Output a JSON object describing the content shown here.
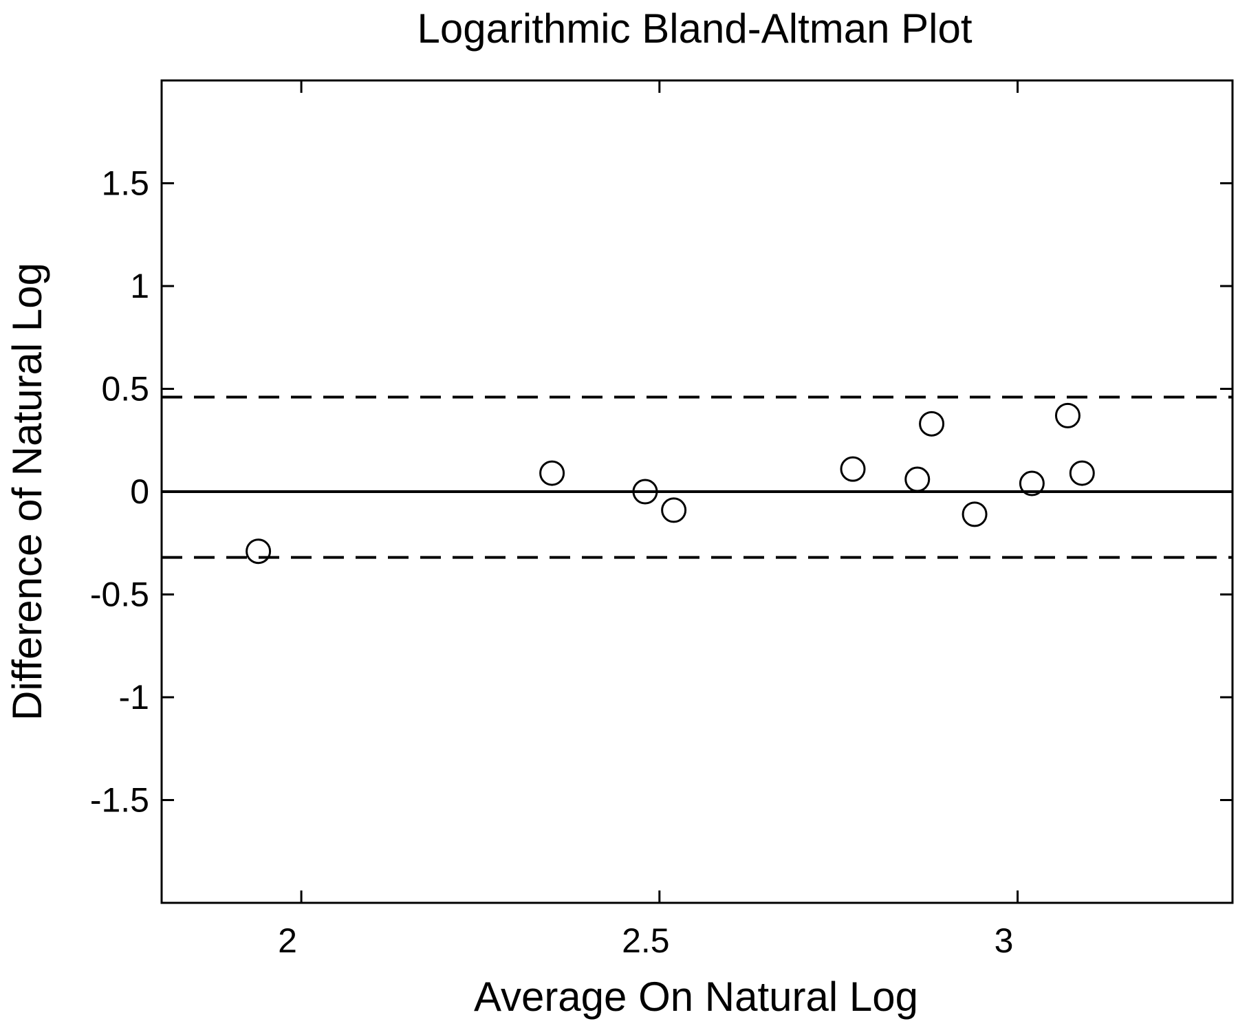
{
  "chart_data": {
    "type": "scatter",
    "title": "Logarithmic Bland-Altman Plot",
    "xlabel": "Average On Natural Log",
    "ylabel": "Difference of Natural Log",
    "xlim": [
      1.805,
      3.3
    ],
    "ylim": [
      -2.0,
      2.0
    ],
    "xticks": [
      {
        "value": 2,
        "label": "2"
      },
      {
        "value": 2.5,
        "label": "2.5"
      },
      {
        "value": 3,
        "label": "3"
      }
    ],
    "yticks": [
      {
        "value": 1.5,
        "label": "1.5"
      },
      {
        "value": 1,
        "label": "1"
      },
      {
        "value": 0.5,
        "label": "0.5"
      },
      {
        "value": 0,
        "label": "0"
      },
      {
        "value": -0.5,
        "label": "-0.5"
      },
      {
        "value": -1,
        "label": "-1"
      },
      {
        "value": -1.5,
        "label": "-1.5"
      }
    ],
    "grid": false,
    "marker": "open-circle",
    "points": [
      {
        "x": 1.94,
        "y": -0.29
      },
      {
        "x": 2.35,
        "y": 0.09
      },
      {
        "x": 2.48,
        "y": 0.0
      },
      {
        "x": 2.52,
        "y": -0.09
      },
      {
        "x": 2.77,
        "y": 0.11
      },
      {
        "x": 2.86,
        "y": 0.06
      },
      {
        "x": 2.88,
        "y": 0.33
      },
      {
        "x": 2.94,
        "y": -0.11
      },
      {
        "x": 3.02,
        "y": 0.04
      },
      {
        "x": 3.07,
        "y": 0.37
      },
      {
        "x": 3.09,
        "y": 0.09
      }
    ],
    "reference_lines": [
      {
        "type": "mean",
        "y": 0.0,
        "style": "solid"
      },
      {
        "type": "upper-limit",
        "y": 0.46,
        "style": "dashed"
      },
      {
        "type": "lower-limit",
        "y": -0.32,
        "style": "dashed"
      }
    ],
    "colors": {
      "foreground": "#000000",
      "background": "#ffffff"
    }
  }
}
